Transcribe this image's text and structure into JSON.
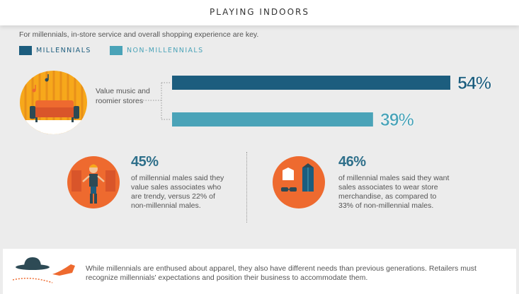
{
  "header": {
    "title": "PLAYING INDOORS"
  },
  "intro": "For millennials, in-store service and overall shopping experience are key.",
  "legend": [
    {
      "label": "MILLENNIALS",
      "color": "#1c5d7e"
    },
    {
      "label": "NON-MILLENNIALS",
      "color": "#4aa3b8"
    }
  ],
  "chart_data": {
    "type": "bar",
    "orientation": "horizontal",
    "categories": [
      "Value music and roomier stores"
    ],
    "series": [
      {
        "name": "MILLENNIALS",
        "values": [
          54
        ],
        "color": "#1c5d7e"
      },
      {
        "name": "NON-MILLENNIALS",
        "values": [
          39
        ],
        "color": "#4aa3b8"
      }
    ],
    "value_labels": [
      "54%",
      "39%"
    ],
    "category_label": "Value music and roomier stores",
    "xlim": [
      0,
      54
    ],
    "grid": false
  },
  "bar_caption": "Value music and roomier stores",
  "stats": [
    {
      "value": "45%",
      "text": "of millennial males said they value sales associates who are trendy, versus  22% of non-millennial males."
    },
    {
      "value": "46%",
      "text": "of millennial males said they want sales associates to wear store merchandise, as compared to 33% of non-millennial males."
    }
  ],
  "footer": {
    "text": "While millennials are enthused about apparel, they also have different needs than previous generations. Retailers must recognize millennials' expectations and position their business to accommodate them."
  },
  "colors": {
    "accent_orange": "#ee6a2f",
    "accent_yellow": "#f7a81b",
    "dark_blue": "#1c5d7e",
    "teal": "#4aa3b8",
    "stat_blue": "#2e6f8a"
  }
}
